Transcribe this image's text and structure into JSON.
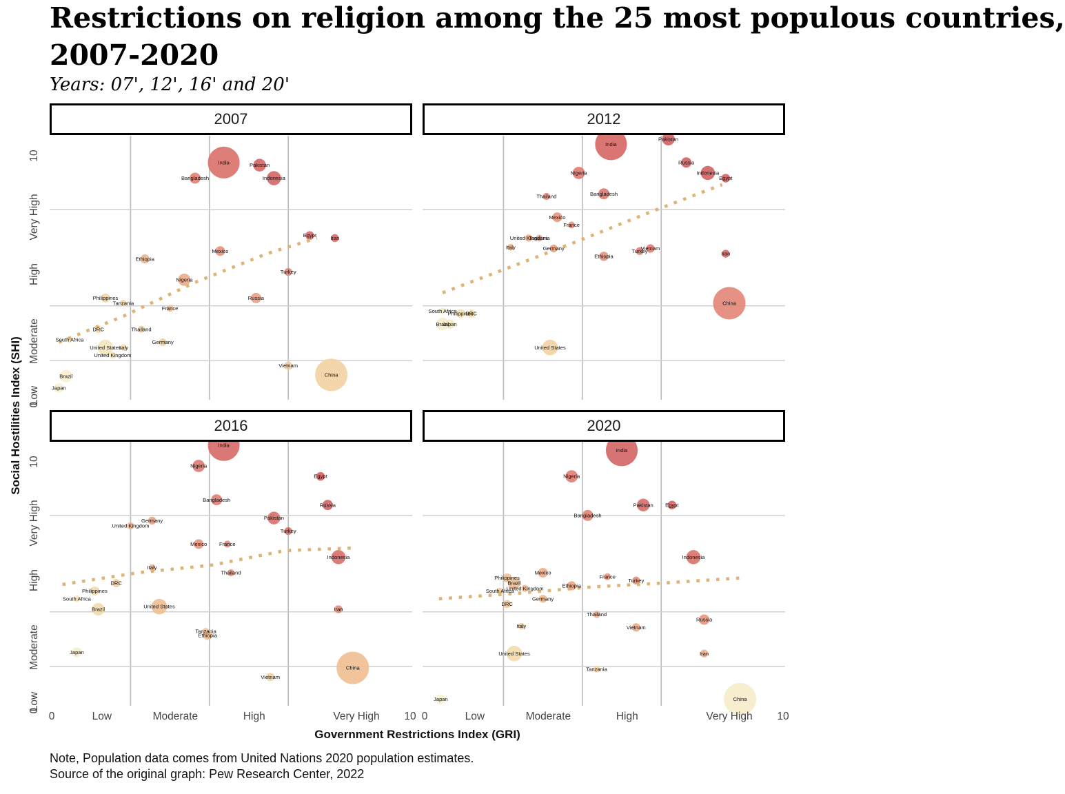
{
  "title_line1": "Restrictions on religion among the 25 most populous countries,",
  "title_line2": "2007-2020",
  "subtitle": "Years: 07', 12', 16' and 20'",
  "notes": {
    "line1": "Note, Population data comes from United Nations 2020 population estimates.",
    "line2": "Source of the original graph: Pew Research Center, 2022"
  },
  "axes": {
    "x_title": "Government Restrictions Index (GRI)",
    "y_title": "Social Hostilities Index (SHI)",
    "x_ticks": [
      "0",
      "Low",
      "Moderate",
      "High",
      "Very High",
      "10"
    ],
    "x_tick_gri": [
      0,
      1.4,
      3.45,
      5.65,
      8.5,
      10
    ],
    "y_ticks": [
      "10",
      "Very High",
      "High",
      "Moderate",
      "Low",
      "0"
    ],
    "y_tick_shi": [
      9.25,
      6.9,
      4.72,
      2.15,
      0.05,
      -0.3
    ],
    "x_gridlines_gri": [
      2.2,
      4.4,
      6.6
    ],
    "y_gridlines_shi": [
      1.4,
      3.5,
      7.2
    ],
    "x_range": [
      0,
      10
    ],
    "y_range": [
      0,
      10
    ]
  },
  "colors": {
    "trend": "#deb376",
    "grid_vertical": "#bdbdbd",
    "grid_horizontal": "#cfcfcf",
    "axis_text": "#444444",
    "label_text": "#111111",
    "header_border": "#000000",
    "bubble_scale_stops": [
      [
        0,
        "#f7f1d5"
      ],
      [
        2,
        "#f5eac6"
      ],
      [
        4,
        "#f3dfb2"
      ],
      [
        7,
        "#f2d2a2"
      ],
      [
        10,
        "#f1c496"
      ],
      [
        14,
        "#efb58e"
      ],
      [
        19,
        "#eca687"
      ],
      [
        25,
        "#e89781"
      ],
      [
        31,
        "#e3887b"
      ],
      [
        38,
        "#de7b74"
      ],
      [
        45,
        "#d9706c"
      ],
      [
        55,
        "#d36565"
      ]
    ]
  },
  "chart_data": {
    "type": "scatter",
    "bubble": true,
    "color_by": "gri_times_shi",
    "size_by": "population_millions",
    "legend_position": "none",
    "grid": true,
    "populations_millions": {
      "China": 1439,
      "India": 1380,
      "United States": 331,
      "Indonesia": 274,
      "Pakistan": 221,
      "Brazil": 213,
      "Nigeria": 206,
      "Bangladesh": 165,
      "Russia": 146,
      "Mexico": 129,
      "Japan": 126,
      "Ethiopia": 115,
      "Philippines": 110,
      "Egypt": 102,
      "Vietnam": 97,
      "DRC": 90,
      "Turkey": 84,
      "Iran": 84,
      "Germany": 84,
      "Thailand": 70,
      "United Kingdom": 68,
      "France": 65,
      "Italy": 60,
      "Tanzania": 60,
      "South Africa": 59
    },
    "panels": [
      {
        "year": "2007",
        "trend": [
          [
            0.2,
            2.1
          ],
          [
            2.0,
            3.1
          ],
          [
            4.0,
            4.4
          ],
          [
            6.0,
            5.5
          ],
          [
            7.4,
            6.1
          ]
        ],
        "points": [
          {
            "country": "India",
            "gri": 4.8,
            "shi": 9.0
          },
          {
            "country": "Pakistan",
            "gri": 5.8,
            "shi": 8.9
          },
          {
            "country": "Bangladesh",
            "gri": 4.0,
            "shi": 8.4
          },
          {
            "country": "Indonesia",
            "gri": 6.2,
            "shi": 8.4
          },
          {
            "country": "Egypt",
            "gri": 7.2,
            "shi": 6.2
          },
          {
            "country": "Iran",
            "gri": 7.9,
            "shi": 6.1
          },
          {
            "country": "Mexico",
            "gri": 4.7,
            "shi": 5.6
          },
          {
            "country": "Ethiopia",
            "gri": 2.6,
            "shi": 5.3
          },
          {
            "country": "Turkey",
            "gri": 6.6,
            "shi": 4.8
          },
          {
            "country": "Nigeria",
            "gri": 3.7,
            "shi": 4.5
          },
          {
            "country": "Russia",
            "gri": 5.7,
            "shi": 3.8
          },
          {
            "country": "Philippines",
            "gri": 1.5,
            "shi": 3.8
          },
          {
            "country": "Tanzania",
            "gri": 2.0,
            "shi": 3.6
          },
          {
            "country": "France",
            "gri": 3.3,
            "shi": 3.4
          },
          {
            "country": "DRC",
            "gri": 1.3,
            "shi": 2.6
          },
          {
            "country": "Thailand",
            "gri": 2.5,
            "shi": 2.6
          },
          {
            "country": "Germany",
            "gri": 3.1,
            "shi": 2.1
          },
          {
            "country": "South Africa",
            "gri": 0.5,
            "shi": 2.2
          },
          {
            "country": "United States",
            "gri": 1.5,
            "shi": 1.9
          },
          {
            "country": "Italy",
            "gri": 2.0,
            "shi": 1.9
          },
          {
            "country": "United Kingdom",
            "gri": 1.7,
            "shi": 1.6
          },
          {
            "country": "Vietnam",
            "gri": 6.6,
            "shi": 1.2
          },
          {
            "country": "China",
            "gri": 7.8,
            "shi": 0.85
          },
          {
            "country": "Brazil",
            "gri": 0.4,
            "shi": 0.8
          },
          {
            "country": "Japan",
            "gri": 0.2,
            "shi": 0.35
          }
        ]
      },
      {
        "year": "2012",
        "trend": [
          [
            0.5,
            4.0
          ],
          [
            2.8,
            5.2
          ],
          [
            4.4,
            6.05
          ],
          [
            6.3,
            7.1
          ],
          [
            8.3,
            8.15
          ]
        ],
        "points": [
          {
            "country": "India",
            "gri": 5.2,
            "shi": 9.7
          },
          {
            "country": "Pakistan",
            "gri": 6.8,
            "shi": 9.9
          },
          {
            "country": "Russia",
            "gri": 7.3,
            "shi": 9.0
          },
          {
            "country": "Nigeria",
            "gri": 4.3,
            "shi": 8.6
          },
          {
            "country": "Indonesia",
            "gri": 7.9,
            "shi": 8.6
          },
          {
            "country": "Egypt",
            "gri": 8.4,
            "shi": 8.4
          },
          {
            "country": "Bangladesh",
            "gri": 5.0,
            "shi": 7.8
          },
          {
            "country": "Thailand",
            "gri": 3.4,
            "shi": 7.7
          },
          {
            "country": "Mexico",
            "gri": 3.7,
            "shi": 6.9
          },
          {
            "country": "France",
            "gri": 4.1,
            "shi": 6.6
          },
          {
            "country": "United Kingdom",
            "gri": 2.9,
            "shi": 6.1
          },
          {
            "country": "Tanzania",
            "gri": 3.2,
            "shi": 6.1
          },
          {
            "country": "Italy",
            "gri": 2.4,
            "shi": 5.75
          },
          {
            "country": "Germany",
            "gri": 3.6,
            "shi": 5.7
          },
          {
            "country": "Ethiopia",
            "gri": 5.0,
            "shi": 5.4
          },
          {
            "country": "Turkey",
            "gri": 6.0,
            "shi": 5.6
          },
          {
            "country": "Vietnam",
            "gri": 6.3,
            "shi": 5.7
          },
          {
            "country": "Iran",
            "gri": 8.4,
            "shi": 5.5
          },
          {
            "country": "China",
            "gri": 8.5,
            "shi": 3.6
          },
          {
            "country": "South Africa",
            "gri": 0.5,
            "shi": 3.3
          },
          {
            "country": "Philippines",
            "gri": 1.0,
            "shi": 3.2
          },
          {
            "country": "DRC",
            "gri": 1.3,
            "shi": 3.2
          },
          {
            "country": "Brazil",
            "gri": 0.5,
            "shi": 2.8
          },
          {
            "country": "Japan",
            "gri": 0.7,
            "shi": 2.8
          },
          {
            "country": "United States",
            "gri": 3.5,
            "shi": 1.9
          }
        ]
      },
      {
        "year": "2016",
        "trend": [
          [
            0.3,
            4.55
          ],
          [
            2.4,
            5.0
          ],
          [
            4.5,
            5.3
          ],
          [
            6.5,
            5.85
          ],
          [
            8.4,
            5.95
          ]
        ],
        "points": [
          {
            "country": "India",
            "gri": 4.8,
            "shi": 9.9
          },
          {
            "country": "Nigeria",
            "gri": 4.1,
            "shi": 9.1
          },
          {
            "country": "Egypt",
            "gri": 7.5,
            "shi": 8.7
          },
          {
            "country": "Bangladesh",
            "gri": 4.6,
            "shi": 7.8
          },
          {
            "country": "Russia",
            "gri": 7.7,
            "shi": 7.6
          },
          {
            "country": "Pakistan",
            "gri": 6.2,
            "shi": 7.1
          },
          {
            "country": "Germany",
            "gri": 2.8,
            "shi": 7.0
          },
          {
            "country": "United Kingdom",
            "gri": 2.2,
            "shi": 6.8
          },
          {
            "country": "Turkey",
            "gri": 6.6,
            "shi": 6.6
          },
          {
            "country": "Mexico",
            "gri": 4.1,
            "shi": 6.1
          },
          {
            "country": "France",
            "gri": 4.9,
            "shi": 6.1
          },
          {
            "country": "Indonesia",
            "gri": 8.0,
            "shi": 5.6
          },
          {
            "country": "Italy",
            "gri": 2.8,
            "shi": 5.2
          },
          {
            "country": "Thailand",
            "gri": 5.0,
            "shi": 5.0
          },
          {
            "country": "DRC",
            "gri": 1.8,
            "shi": 4.6
          },
          {
            "country": "Philippines",
            "gri": 1.2,
            "shi": 4.3
          },
          {
            "country": "South Africa",
            "gri": 0.7,
            "shi": 4.0
          },
          {
            "country": "United States",
            "gri": 3.0,
            "shi": 3.7
          },
          {
            "country": "Brazil",
            "gri": 1.3,
            "shi": 3.6
          },
          {
            "country": "Iran",
            "gri": 8.0,
            "shi": 3.6
          },
          {
            "country": "Tanzania",
            "gri": 4.3,
            "shi": 2.75
          },
          {
            "country": "Ethiopia",
            "gri": 4.35,
            "shi": 2.6
          },
          {
            "country": "Japan",
            "gri": 0.7,
            "shi": 1.95
          },
          {
            "country": "China",
            "gri": 8.4,
            "shi": 1.35
          },
          {
            "country": "Vietnam",
            "gri": 6.1,
            "shi": 1.0
          }
        ]
      },
      {
        "year": "2020",
        "trend": [
          [
            0.4,
            4.0
          ],
          [
            2.5,
            4.2
          ],
          [
            4.6,
            4.45
          ],
          [
            6.6,
            4.6
          ],
          [
            8.8,
            4.8
          ]
        ],
        "points": [
          {
            "country": "India",
            "gri": 5.5,
            "shi": 9.7
          },
          {
            "country": "Nigeria",
            "gri": 4.1,
            "shi": 8.7
          },
          {
            "country": "Pakistan",
            "gri": 6.1,
            "shi": 7.6
          },
          {
            "country": "Egypt",
            "gri": 6.9,
            "shi": 7.6
          },
          {
            "country": "Bangladesh",
            "gri": 4.55,
            "shi": 7.2
          },
          {
            "country": "Indonesia",
            "gri": 7.5,
            "shi": 5.6
          },
          {
            "country": "Mexico",
            "gri": 3.3,
            "shi": 5.0
          },
          {
            "country": "France",
            "gri": 5.1,
            "shi": 4.85
          },
          {
            "country": "Philippines",
            "gri": 2.3,
            "shi": 4.8
          },
          {
            "country": "Turkey",
            "gri": 5.9,
            "shi": 4.7
          },
          {
            "country": "Brazil",
            "gri": 2.5,
            "shi": 4.6
          },
          {
            "country": "Ethiopia",
            "gri": 4.1,
            "shi": 4.5
          },
          {
            "country": "United Kingdom",
            "gri": 2.8,
            "shi": 4.4
          },
          {
            "country": "South Africa",
            "gri": 2.1,
            "shi": 4.3
          },
          {
            "country": "Germany",
            "gri": 3.3,
            "shi": 4.0
          },
          {
            "country": "DRC",
            "gri": 2.3,
            "shi": 3.8
          },
          {
            "country": "Thailand",
            "gri": 4.8,
            "shi": 3.4
          },
          {
            "country": "Russia",
            "gri": 7.8,
            "shi": 3.2
          },
          {
            "country": "Italy",
            "gri": 2.7,
            "shi": 2.95
          },
          {
            "country": "Vietnam",
            "gri": 5.9,
            "shi": 2.9
          },
          {
            "country": "United States",
            "gri": 2.5,
            "shi": 1.9
          },
          {
            "country": "Iran",
            "gri": 7.8,
            "shi": 1.9
          },
          {
            "country": "Tanzania",
            "gri": 4.8,
            "shi": 1.3
          },
          {
            "country": "Japan",
            "gri": 0.45,
            "shi": 0.15
          },
          {
            "country": "China",
            "gri": 8.8,
            "shi": 0.15
          }
        ]
      }
    ]
  }
}
